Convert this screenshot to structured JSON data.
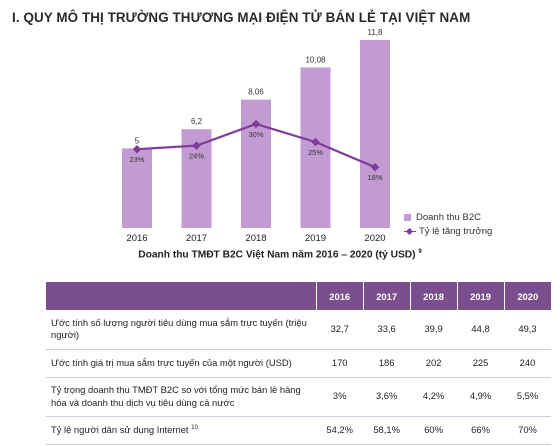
{
  "heading": "I. QUY MÔ THỊ TRƯỜNG THƯƠNG MẠI ĐIỆN TỬ BÁN LẺ TẠI VIỆT NAM",
  "chart_data": {
    "type": "bar",
    "categories": [
      "2016",
      "2017",
      "2018",
      "2019",
      "2020"
    ],
    "series": [
      {
        "name": "Doanh thu B2C",
        "type": "bar",
        "values": [
          5,
          6.2,
          8.06,
          10.08,
          11.8
        ],
        "labels": [
          "5",
          "6,2",
          "8,06",
          "10,08",
          "11,8"
        ],
        "color": "#c39bd3"
      },
      {
        "name": "Tỷ lệ tăng trưởng",
        "type": "line",
        "values": [
          23,
          24,
          30,
          25,
          18
        ],
        "labels": [
          "23%",
          "24%",
          "30%",
          "25%",
          "18%"
        ],
        "color": "#7d3c98"
      }
    ],
    "title": "Doanh thu TMĐT B2C Việt Nam năm 2016 – 2020 (tỷ USD)",
    "title_note": "9",
    "legend_position": "right",
    "grid": false
  },
  "legend": {
    "bar_label": "Doanh thu B2C",
    "line_label": "Tỷ lệ tăng trưởng"
  },
  "table": {
    "headers": [
      "",
      "2016",
      "2017",
      "2018",
      "2019",
      "2020"
    ],
    "rows": [
      {
        "label": "Ước tính số lượng người tiêu dùng mua sắm trực tuyến (triệu người)",
        "note": "",
        "values": [
          "32,7",
          "33,6",
          "39,9",
          "44,8",
          "49,3"
        ]
      },
      {
        "label": "Ước tính giá trị mua sắm trực tuyến của một người (USD)",
        "note": "",
        "values": [
          "170",
          "186",
          "202",
          "225",
          "240"
        ]
      },
      {
        "label": "Tỷ trọng doanh thu TMĐT B2C so với tổng mức bán lẻ hàng hóa và doanh thu dịch vụ tiêu dùng cả nước",
        "note": "",
        "values": [
          "3%",
          "3,6%",
          "4,2%",
          "4,9%",
          "5,5%"
        ]
      },
      {
        "label": "Tỷ lệ người dân sử dụng Internet",
        "note": "10",
        "values": [
          "54,2%",
          "58,1%",
          "60%",
          "66%",
          "70%"
        ]
      }
    ]
  }
}
